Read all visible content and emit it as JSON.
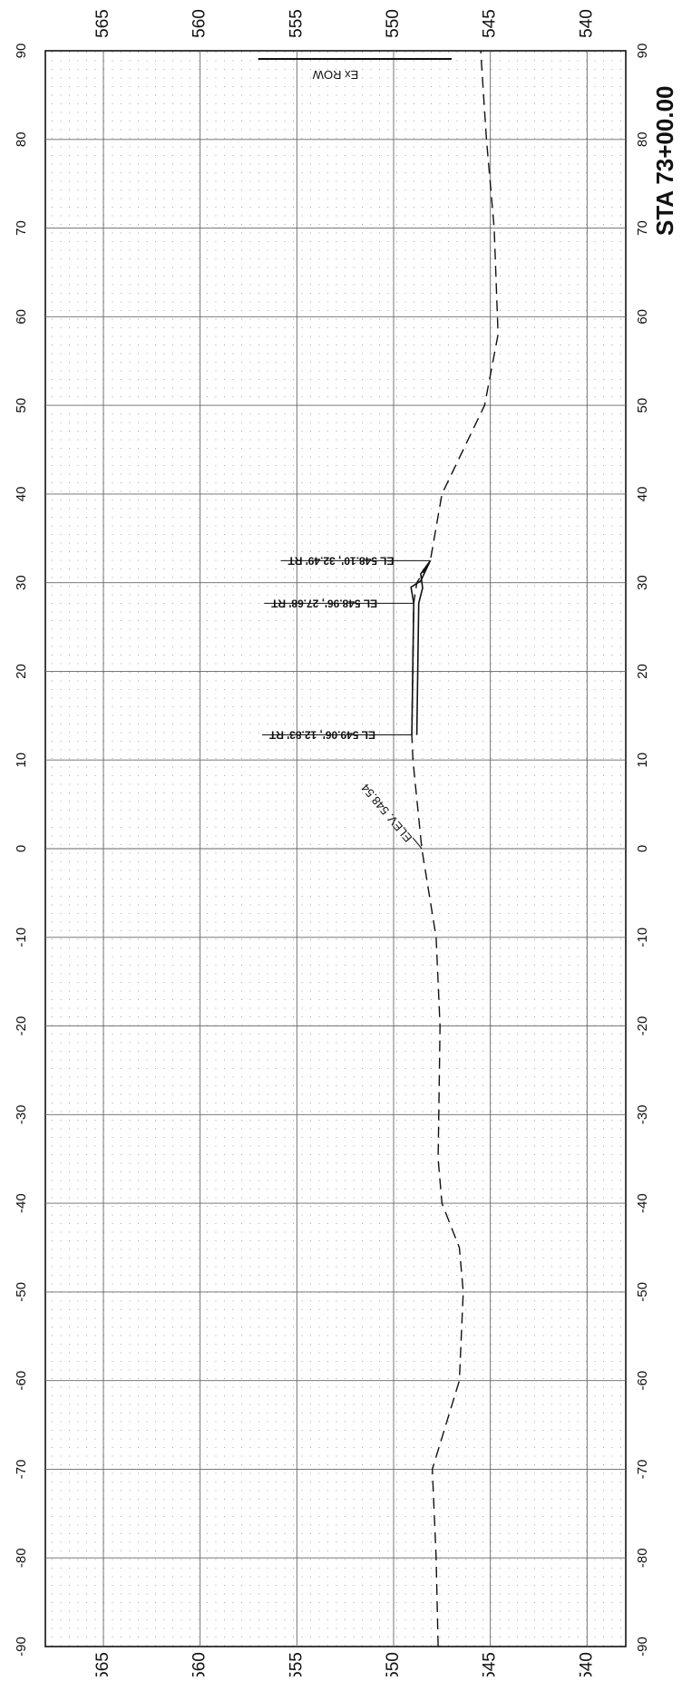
{
  "title": "STA 73+00.00",
  "axes": {
    "offset_ticks": [
      -90,
      -80,
      -70,
      -60,
      -50,
      -40,
      -30,
      -20,
      -10,
      0,
      10,
      20,
      30,
      40,
      50,
      60,
      70,
      80,
      90
    ],
    "elevation_ticks": [
      565,
      560,
      555,
      550,
      545,
      540
    ],
    "offset_range": [
      -90,
      90
    ],
    "elevation_range": [
      538,
      568
    ]
  },
  "chart_data": {
    "type": "line",
    "title": "STA 73+00.00",
    "xlim": [
      -90,
      90
    ],
    "ylim": [
      538,
      568
    ],
    "grid": true,
    "series": [
      {
        "style": "dashed",
        "points": [
          [
            -90,
            547.7
          ],
          [
            -80,
            547.8
          ],
          [
            -70,
            548.0
          ],
          [
            -60,
            546.6
          ],
          [
            -50,
            546.4
          ],
          [
            -45,
            546.6
          ],
          [
            -40,
            547.5
          ],
          [
            -35,
            547.7
          ],
          [
            -20,
            547.6
          ],
          [
            -10,
            547.8
          ],
          [
            0,
            548.54
          ],
          [
            10,
            549.0
          ],
          [
            12.83,
            549.06
          ],
          [
            27.68,
            548.96
          ],
          [
            30,
            548.8
          ],
          [
            32.49,
            548.1
          ],
          [
            40,
            547.5
          ],
          [
            50,
            545.3
          ],
          [
            58,
            544.6
          ],
          [
            70,
            544.8
          ],
          [
            80,
            545.2
          ],
          [
            90,
            545.5
          ]
        ]
      },
      {
        "style": "solid",
        "points": [
          [
            12.83,
            549.06
          ],
          [
            27.68,
            548.96
          ],
          [
            29.5,
            549.1
          ],
          [
            30.2,
            548.6
          ],
          [
            32.49,
            548.1
          ],
          [
            31.0,
            548.6
          ],
          [
            29.4,
            548.5
          ],
          [
            27.68,
            548.7
          ],
          [
            12.83,
            548.8
          ]
        ]
      }
    ],
    "annotations": [
      {
        "text": "ELEV. 548.54",
        "x": 0,
        "y": 548.54
      },
      {
        "text": "EL 549.06', 12.83' RT",
        "x": 12.83,
        "y": 549.06
      },
      {
        "text": "EL 548.96', 27.68' RT",
        "x": 27.68,
        "y": 548.96
      },
      {
        "text": "EL 548.10', 32.49' RT",
        "x": 32.49,
        "y": 548.1
      },
      {
        "text": "Ex ROW",
        "x": 89,
        "y": 553
      }
    ]
  }
}
